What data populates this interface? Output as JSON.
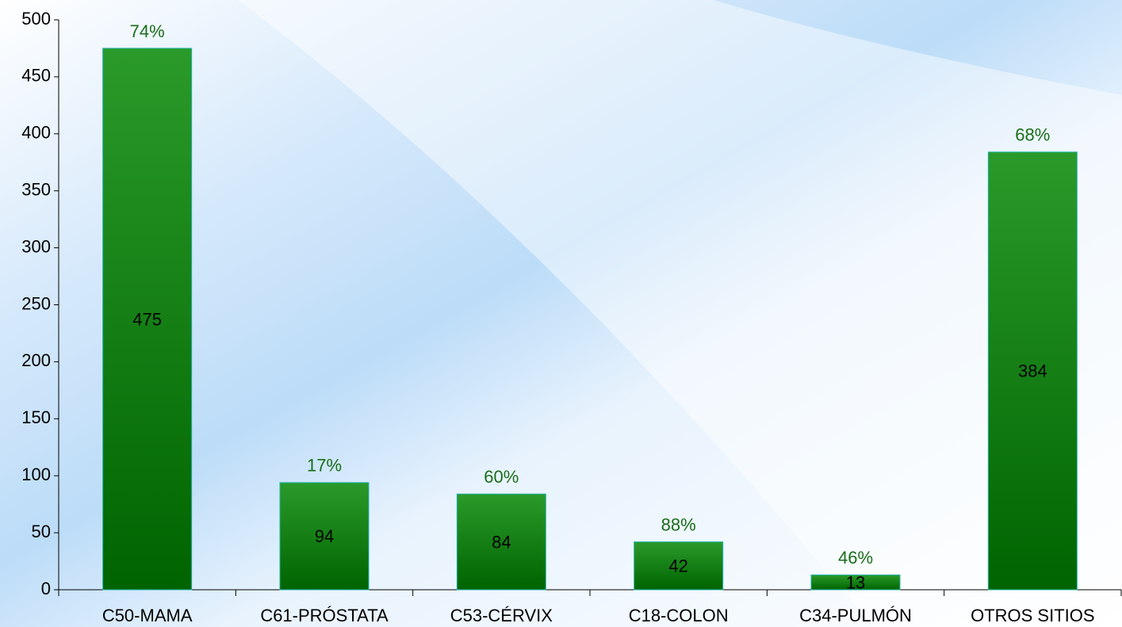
{
  "chart_data": {
    "type": "bar",
    "categories": [
      "C50-MAMA",
      "C61-PRÓSTATA",
      "C53-CÉRVIX",
      "C18-COLON",
      "C34-PULMÓN",
      "OTROS SITIOS"
    ],
    "values": [
      475,
      94,
      84,
      42,
      13,
      384
    ],
    "annotations": [
      "74%",
      "17%",
      "60%",
      "88%",
      "46%",
      "68%"
    ],
    "color": "#1f8a1f",
    "ylim": [
      0,
      500
    ],
    "yticks": [
      0,
      50,
      100,
      150,
      200,
      250,
      300,
      350,
      400,
      450,
      500
    ]
  }
}
